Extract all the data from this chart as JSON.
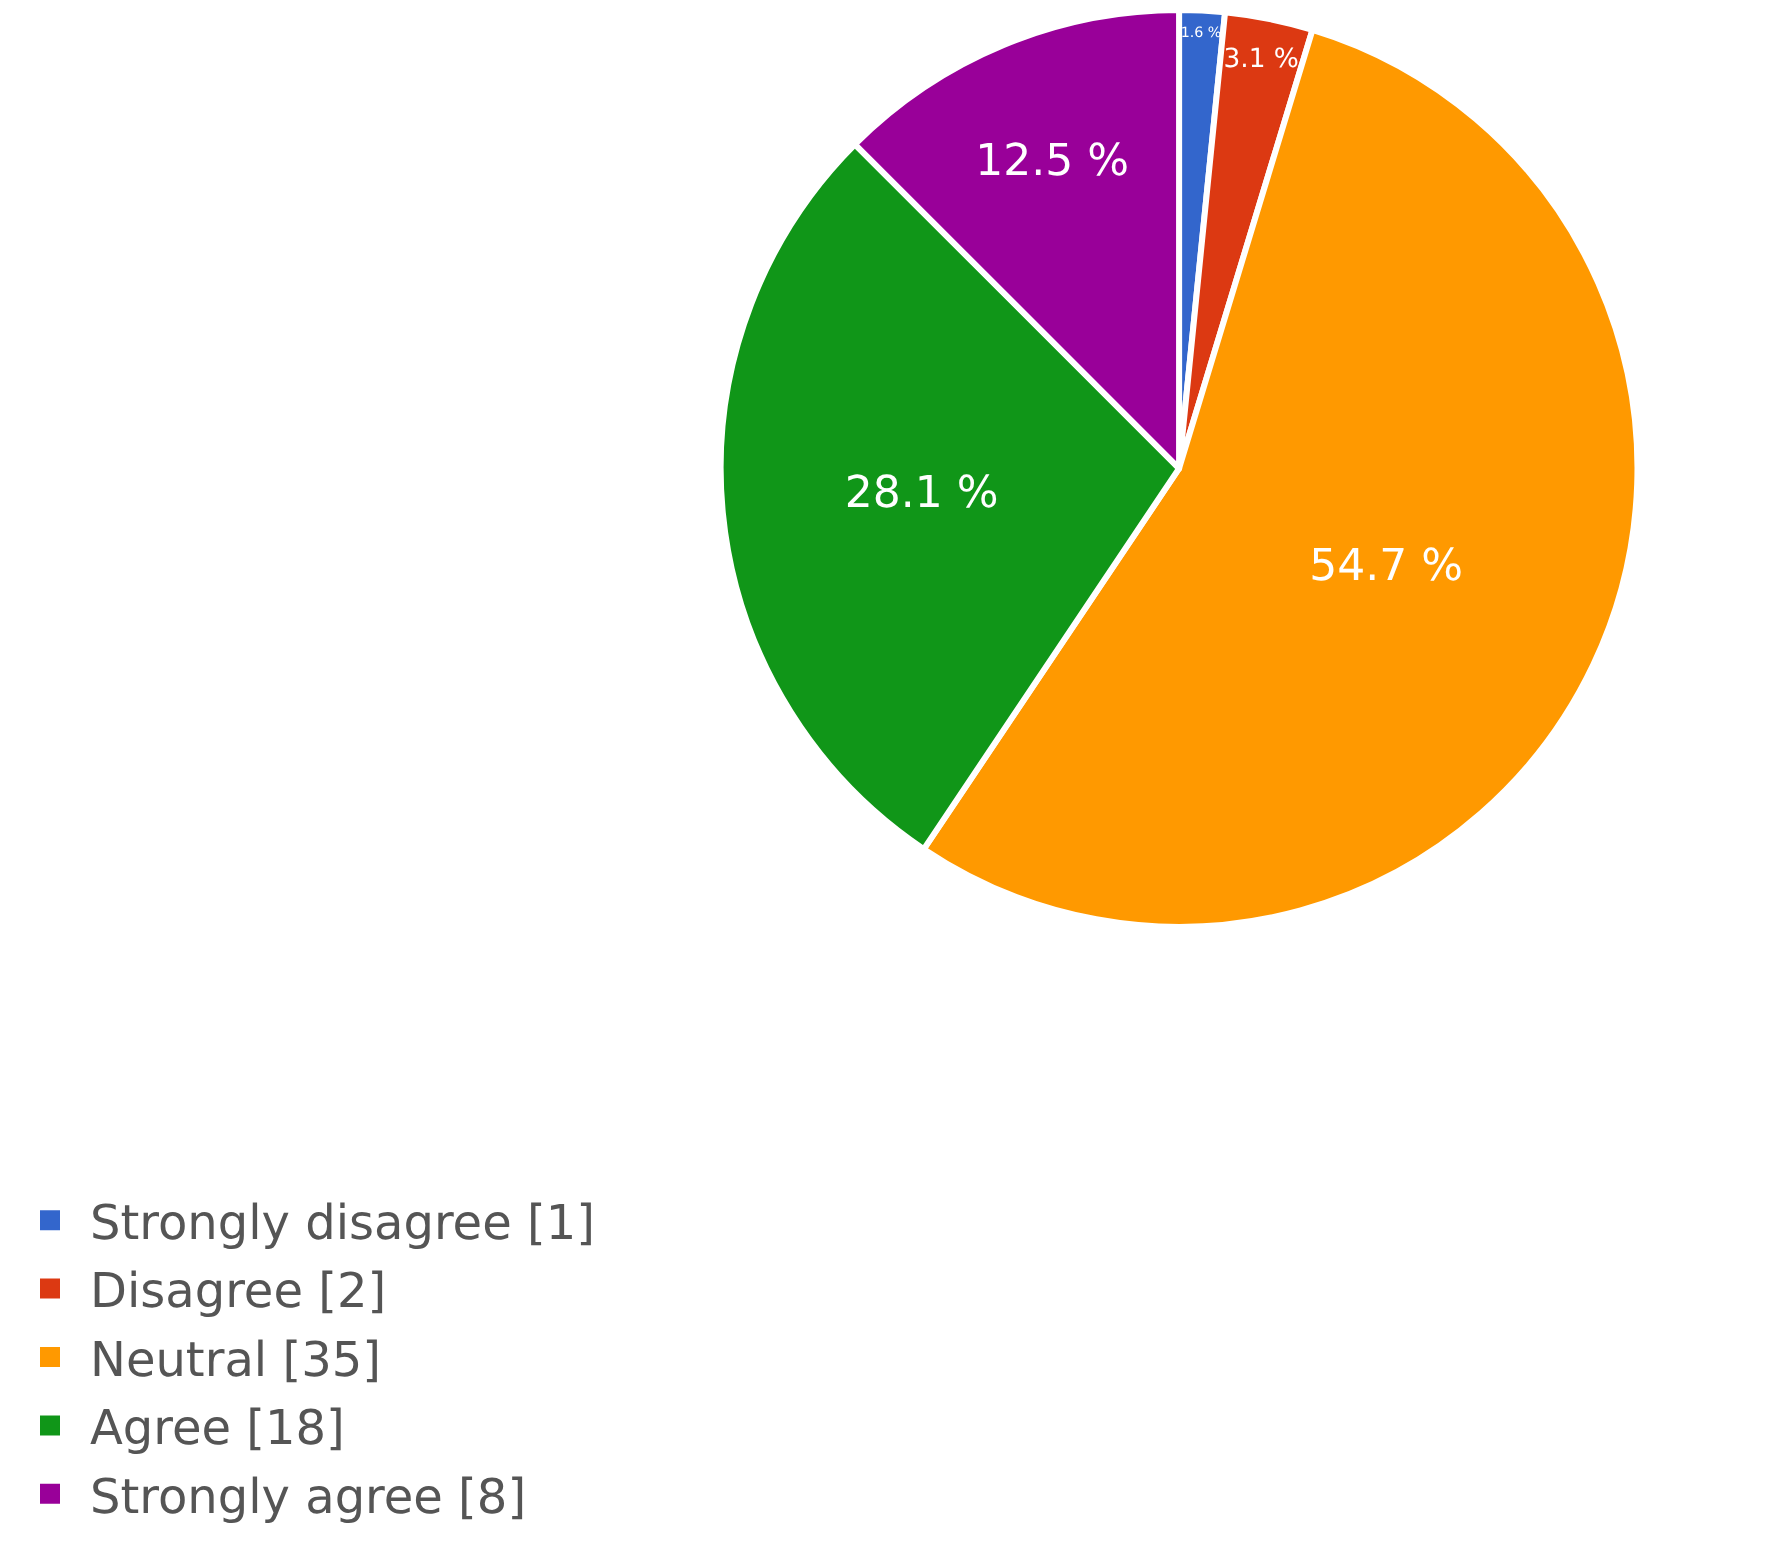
{
  "chart_data": {
    "type": "pie",
    "categories": [
      "Strongly disagree [1]",
      "Disagree [2]",
      "Neutral [35]",
      "Agree [18]",
      "Strongly agree [8]"
    ],
    "values": [
      1.6,
      3.1,
      54.7,
      28.1,
      12.5
    ],
    "colors": [
      "#3366cc",
      "#dc3912",
      "#ff9900",
      "#109618",
      "#990099"
    ],
    "value_labels": [
      "1.6 %",
      "3.1 %",
      "54.7 %",
      "28.1 %",
      "12.5 %"
    ],
    "legend": "bottom left"
  }
}
